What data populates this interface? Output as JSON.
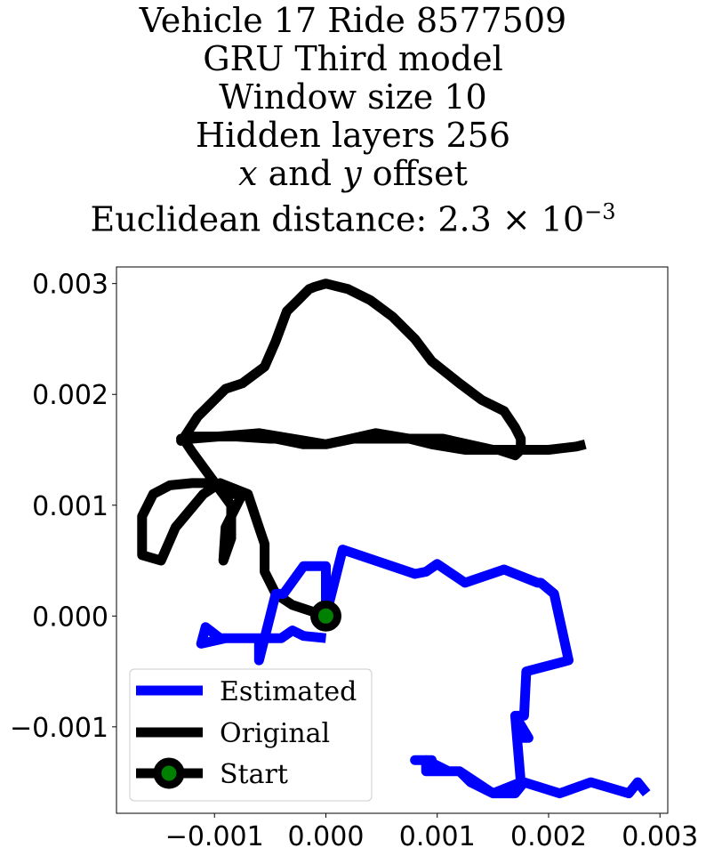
{
  "title_lines": {
    "line1": "Vehicle 17 Ride 8577509",
    "line2": "GRU Third model",
    "line3": "Window size 10",
    "line4": "Hidden layers 256",
    "line5_var_x": "x",
    "line5_mid": " and ",
    "line5_var_y": "y",
    "line5_end": " offset",
    "line6_prefix": "Euclidean distance: 2.3",
    "line6_times": " × 10",
    "line6_exp": "−3"
  },
  "chart_data": {
    "type": "line",
    "title": "Vehicle 17 Ride 8577509 GRU Third model Window size 10 Hidden layers 256 x and y offset Euclidean distance: 2.3×10^-3",
    "xlim": [
      -0.00188,
      0.00307
    ],
    "ylim": [
      -0.00178,
      0.00315
    ],
    "xticks": [
      -0.001,
      0.0,
      0.001,
      0.002,
      0.003
    ],
    "xtick_labels": [
      "−0.001",
      "0.000",
      "0.001",
      "0.002",
      "0.003"
    ],
    "yticks": [
      -0.001,
      0.0,
      0.001,
      0.002,
      0.003
    ],
    "ytick_labels": [
      "−0.001",
      "0.000",
      "0.001",
      "0.002",
      "0.003"
    ],
    "grid": false,
    "legend_position": "lower-left",
    "series": [
      {
        "name": "Estimated",
        "color": "#0000ff",
        "x": [
          0.0,
          -0.0002,
          -0.0003,
          -0.0004,
          -0.0005,
          -0.0006,
          -0.0007,
          -0.0009,
          -0.00112,
          -0.00108,
          -0.00095,
          -0.0006,
          -0.0006,
          -0.0006,
          -0.00045,
          -0.00038,
          -0.0002,
          0.0,
          0.0,
          0.00015,
          0.0008,
          0.0009,
          0.001,
          0.00125,
          0.0016,
          0.0019,
          0.00193,
          0.00205,
          0.00218,
          0.0018,
          0.00178,
          0.0017,
          0.00182,
          0.00175,
          0.0017,
          0.00175,
          0.0015,
          0.0012,
          0.0011,
          0.0009,
          0.0009,
          0.0009,
          0.00095,
          0.0008,
          0.0009,
          0.0009,
          0.0012,
          0.0013,
          0.0013,
          0.0015,
          0.0017,
          0.00178,
          0.0021,
          0.00238,
          0.00272,
          0.0028,
          0.00288
        ],
        "y": [
          -0.0002,
          -0.00018,
          -0.00013,
          -0.0002,
          -0.0002,
          -0.0002,
          -0.0002,
          -0.0002,
          -0.00025,
          -0.0001,
          -0.0002,
          -0.0002,
          -0.0004,
          -0.0004,
          0.0002,
          0.0002,
          0.00045,
          0.00045,
          0.0,
          0.0006,
          0.00038,
          0.0004,
          0.00047,
          0.0003,
          0.00042,
          0.0003,
          0.0003,
          0.0002,
          -0.0004,
          -0.0005,
          -0.0009,
          -0.0009,
          -0.0011,
          -0.0011,
          -0.0009,
          -0.0015,
          -0.0016,
          -0.0014,
          -0.0014,
          -0.0013,
          -0.0014,
          -0.0014,
          -0.0013,
          -0.0013,
          -0.0013,
          -0.0014,
          -0.0014,
          -0.0015,
          -0.0015,
          -0.0016,
          -0.0016,
          -0.0015,
          -0.0016,
          -0.0015,
          -0.0016,
          -0.0015,
          -0.0016
        ]
      },
      {
        "name": "Original",
        "color": "#000000",
        "x": [
          0.0,
          -0.0003,
          -0.00045,
          -0.00055,
          -0.00055,
          -0.0006,
          -0.0007,
          -0.0009,
          -0.00095,
          -0.0011,
          -0.00135,
          -0.00148,
          -0.00165,
          -0.00165,
          -0.00155,
          -0.0014,
          -0.0012,
          -0.00105,
          -0.00085,
          -0.00075,
          -0.0009,
          -0.00092,
          -0.00085,
          -0.00085,
          -0.0012,
          -0.00128,
          -0.0013,
          -0.00128,
          -0.00115,
          -0.0009,
          -0.00075,
          -0.00055,
          -0.00045,
          -0.00035,
          -0.00025,
          -0.0002,
          -0.00015,
          -0.0001,
          0.0,
          0.0002,
          0.0004,
          0.0006,
          0.0008,
          0.00095,
          0.0012,
          0.0014,
          0.0016,
          0.0017,
          0.00175,
          0.00175,
          0.0017,
          0.00155,
          0.0014,
          0.00125,
          0.00095,
          0.00075,
          0.00055,
          0.00045,
          0.00025,
          0.0,
          -0.0002,
          -0.00045,
          -0.0005,
          -0.0008,
          -0.00098,
          -0.0012,
          -0.0013,
          -0.0012,
          -0.0006,
          0.0,
          0.00045,
          0.00075,
          0.00105,
          0.0015,
          0.00175,
          0.002,
          0.00225,
          0.00233
        ],
        "y": [
          0.0,
          0.0001,
          0.0002,
          0.0004,
          0.00065,
          0.0008,
          0.0011,
          0.00118,
          0.0012,
          0.0011,
          0.0008,
          0.0005,
          0.00055,
          0.0009,
          0.0011,
          0.00118,
          0.0012,
          0.0012,
          0.0011,
          0.0011,
          0.0008,
          0.0005,
          0.0007,
          0.001,
          0.00148,
          0.0016,
          0.00158,
          0.0016,
          0.0018,
          0.00205,
          0.0021,
          0.00225,
          0.00248,
          0.00275,
          0.00285,
          0.0029,
          0.00295,
          0.00297,
          0.003,
          0.00295,
          0.00285,
          0.0027,
          0.0025,
          0.0023,
          0.0021,
          0.00195,
          0.00185,
          0.0017,
          0.0016,
          0.0015,
          0.00145,
          0.0015,
          0.0015,
          0.0015,
          0.00155,
          0.0016,
          0.0016,
          0.0016,
          0.0016,
          0.00155,
          0.00155,
          0.0016,
          0.0016,
          0.00162,
          0.00162,
          0.00162,
          0.0016,
          0.0016,
          0.00165,
          0.00155,
          0.00165,
          0.0016,
          0.0016,
          0.0015,
          0.0015,
          0.0015,
          0.00153,
          0.00155
        ]
      }
    ],
    "start_point": {
      "name": "Start",
      "x": 0.0,
      "y": 0.0,
      "fill": "#008000",
      "edge": "#000000"
    }
  }
}
